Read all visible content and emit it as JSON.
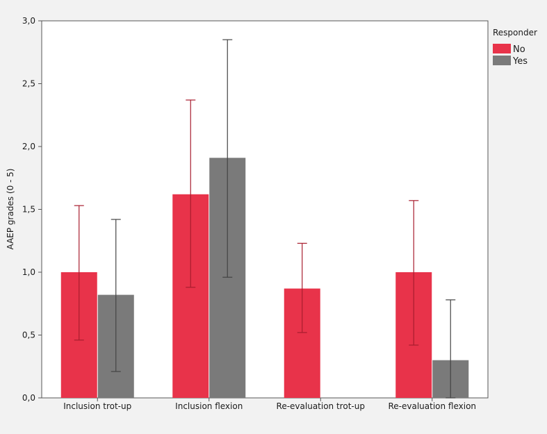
{
  "chart_data": {
    "type": "bar",
    "title": "",
    "xlabel": "",
    "ylabel": "AAEP grades (0 - 5)",
    "ylim": [
      0,
      3.0
    ],
    "yticks": [
      "0,0",
      "0,5",
      "1,0",
      "1,5",
      "2,0",
      "2,5",
      "3,0"
    ],
    "ytick_values": [
      0,
      0.5,
      1.0,
      1.5,
      2.0,
      2.5,
      3.0
    ],
    "categories": [
      "Inclusion trot-up",
      "Inclusion flexion",
      "Re-evaluation trot-up",
      "Re-evaluation flexion"
    ],
    "grid": false,
    "legend": {
      "title": "Responder",
      "placement": "top-right"
    },
    "series": [
      {
        "name": "No",
        "color": "#e8334a",
        "values": [
          1.0,
          1.62,
          0.87,
          1.0
        ],
        "error_low": [
          0.46,
          0.88,
          0.52,
          0.42
        ],
        "error_high": [
          1.53,
          2.37,
          1.23,
          1.57
        ]
      },
      {
        "name": "Yes",
        "color": "#7a7a7a",
        "values": [
          0.82,
          1.91,
          null,
          0.3
        ],
        "error_low": [
          0.21,
          0.96,
          null,
          0.0
        ],
        "error_high": [
          1.42,
          2.85,
          null,
          0.78
        ]
      }
    ]
  }
}
